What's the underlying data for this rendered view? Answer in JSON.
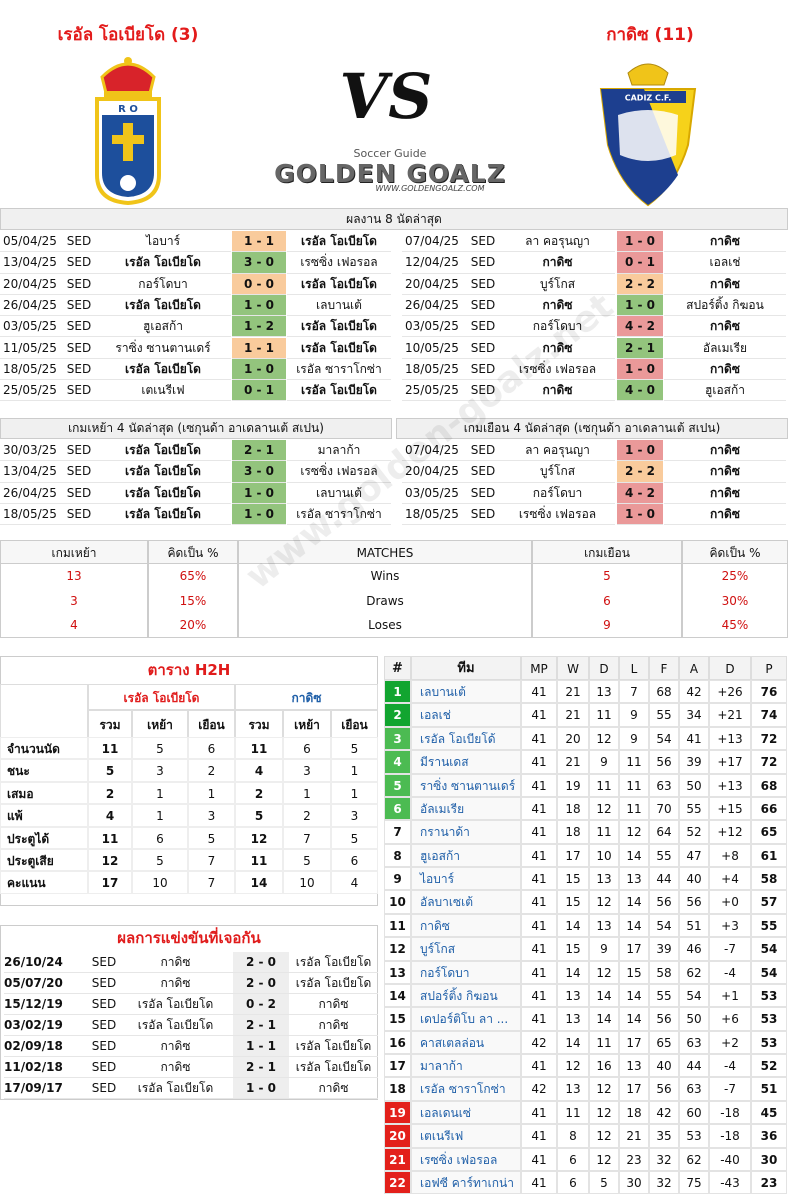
{
  "header": {
    "home_team": "เรอัล โอเบียโด (3)",
    "away_team": "กาดิซ (11)",
    "vs": "VS",
    "home_crest_text": "R O",
    "away_crest_text": "CADIZ C.F.",
    "brand_tagline": "Soccer Guide",
    "brand_name": "GOLDEN GOALZ",
    "brand_url": "WWW.GOLDENGOALZ.COM",
    "watermark": "www.golden-goalz.net"
  },
  "last8": {
    "title": "ผลงาน 8 นัดล่าสุด",
    "home": [
      [
        "05/04/25",
        "SED",
        "ไอบาร์",
        "1 - 1",
        "เรอัล โอเบียโด",
        "#f9cb9c"
      ],
      [
        "13/04/25",
        "SED",
        "เรอัล โอเบียโด",
        "3 - 0",
        "เรซซิ่ง เฟอรอล",
        "#93c47d"
      ],
      [
        "20/04/25",
        "SED",
        "กอร์โดบา",
        "0 - 0",
        "เรอัล โอเบียโด",
        "#f9cb9c"
      ],
      [
        "26/04/25",
        "SED",
        "เรอัล โอเบียโด",
        "1 - 0",
        "เลบานเต้",
        "#93c47d"
      ],
      [
        "03/05/25",
        "SED",
        "ฮูเอสก้า",
        "1 - 2",
        "เรอัล โอเบียโด",
        "#93c47d"
      ],
      [
        "11/05/25",
        "SED",
        "ราซิ่ง ซานตานเดร์",
        "1 - 1",
        "เรอัล โอเบียโด",
        "#f9cb9c"
      ],
      [
        "18/05/25",
        "SED",
        "เรอัล โอเบียโด",
        "1 - 0",
        "เรอัล ซาราโกซ่า",
        "#93c47d"
      ],
      [
        "25/05/25",
        "SED",
        "เตเนรีเฟ",
        "0 - 1",
        "เรอัล โอเบียโด",
        "#93c47d"
      ]
    ],
    "away": [
      [
        "07/04/25",
        "SED",
        "ลา คอรุนญา",
        "1 - 0",
        "กาดิซ",
        "#ea9999"
      ],
      [
        "12/04/25",
        "SED",
        "กาดิซ",
        "0 - 1",
        "เอลเช่",
        "#ea9999"
      ],
      [
        "20/04/25",
        "SED",
        "บูร์โกส",
        "2 - 2",
        "กาดิซ",
        "#f9cb9c"
      ],
      [
        "26/04/25",
        "SED",
        "กาดิซ",
        "1 - 0",
        "สปอร์ติ้ง กิฆอน",
        "#93c47d"
      ],
      [
        "03/05/25",
        "SED",
        "กอร์โดบา",
        "4 - 2",
        "กาดิซ",
        "#ea9999"
      ],
      [
        "10/05/25",
        "SED",
        "กาดิซ",
        "2 - 1",
        "อัลเมเรีย",
        "#93c47d"
      ],
      [
        "18/05/25",
        "SED",
        "เรซซิ่ง เฟอรอล",
        "1 - 0",
        "กาดิซ",
        "#ea9999"
      ],
      [
        "25/05/25",
        "SED",
        "กาดิซ",
        "4 - 0",
        "ฮูเอสก้า",
        "#93c47d"
      ]
    ]
  },
  "last4": {
    "home_title": "เกมเหย้า 4 นัดล่าสุด (เซกุนด้า อาเดลานเต้ สเปน)",
    "away_title": "เกมเยือน 4 นัดล่าสุด (เซกุนด้า อาเดลานเต้ สเปน)",
    "home": [
      [
        "30/03/25",
        "SED",
        "เรอัล โอเบียโด",
        "2 - 1",
        "มาลาก้า",
        "#93c47d"
      ],
      [
        "13/04/25",
        "SED",
        "เรอัล โอเบียโด",
        "3 - 0",
        "เรซซิ่ง เฟอรอล",
        "#93c47d"
      ],
      [
        "26/04/25",
        "SED",
        "เรอัล โอเบียโด",
        "1 - 0",
        "เลบานเต้",
        "#93c47d"
      ],
      [
        "18/05/25",
        "SED",
        "เรอัล โอเบียโด",
        "1 - 0",
        "เรอัล ซาราโกซ่า",
        "#93c47d"
      ]
    ],
    "away": [
      [
        "07/04/25",
        "SED",
        "ลา คอรุนญา",
        "1 - 0",
        "กาดิซ",
        "#ea9999"
      ],
      [
        "20/04/25",
        "SED",
        "บูร์โกส",
        "2 - 2",
        "กาดิซ",
        "#f9cb9c"
      ],
      [
        "03/05/25",
        "SED",
        "กอร์โดบา",
        "4 - 2",
        "กาดิซ",
        "#ea9999"
      ],
      [
        "18/05/25",
        "SED",
        "เรซซิ่ง เฟอรอล",
        "1 - 0",
        "กาดิซ",
        "#ea9999"
      ]
    ]
  },
  "stats": {
    "headers": [
      "เกมเหย้า",
      "คิดเป็น %",
      "MATCHES",
      "เกมเยือน",
      "คิดเป็น %"
    ],
    "rows": [
      [
        13,
        "65%",
        "Wins",
        5,
        "25%"
      ],
      [
        3,
        "15%",
        "Draws",
        6,
        "30%"
      ],
      [
        4,
        "20%",
        "Loses",
        9,
        "45%"
      ]
    ]
  },
  "h2h": {
    "title": "ตาราง H2H",
    "teams": [
      "เรอัล โอเบียโด",
      "กาดิซ"
    ],
    "columns": [
      "รวม",
      "เหย้า",
      "เยือน"
    ],
    "rows": [
      [
        "จำนวนนัด",
        11,
        5,
        6,
        11,
        6,
        5
      ],
      [
        "ชนะ",
        5,
        3,
        2,
        4,
        3,
        1
      ],
      [
        "เสมอ",
        2,
        1,
        1,
        2,
        1,
        1
      ],
      [
        "แพ้",
        4,
        1,
        3,
        5,
        2,
        3
      ],
      [
        "ประตูได้",
        11,
        6,
        5,
        12,
        7,
        5
      ],
      [
        "ประตูเสีย",
        12,
        5,
        7,
        11,
        5,
        6
      ],
      [
        "คะแนน",
        17,
        10,
        7,
        14,
        10,
        4
      ]
    ]
  },
  "meetings": {
    "title": "ผลการแข่งขันที่เจอกัน",
    "rows": [
      [
        "26/10/24",
        "SED",
        "กาดิซ",
        "2 - 0",
        "เรอัล โอเบียโด"
      ],
      [
        "05/07/20",
        "SED",
        "กาดิซ",
        "2 - 0",
        "เรอัล โอเบียโด"
      ],
      [
        "15/12/19",
        "SED",
        "เรอัล โอเบียโด",
        "0 - 2",
        "กาดิซ"
      ],
      [
        "03/02/19",
        "SED",
        "เรอัล โอเบียโด",
        "2 - 1",
        "กาดิซ"
      ],
      [
        "02/09/18",
        "SED",
        "กาดิซ",
        "1 - 1",
        "เรอัล โอเบียโด"
      ],
      [
        "11/02/18",
        "SED",
        "กาดิซ",
        "2 - 1",
        "เรอัล โอเบียโด"
      ],
      [
        "17/09/17",
        "SED",
        "เรอัล โอเบียโด",
        "1 - 0",
        "กาดิซ"
      ]
    ]
  },
  "league": {
    "headers": [
      "#",
      "ทีม",
      "MP",
      "W",
      "D",
      "L",
      "F",
      "A",
      "D",
      "P"
    ],
    "rows": [
      [
        1,
        "เลบานเต้",
        41,
        21,
        13,
        7,
        68,
        42,
        "+26",
        76
      ],
      [
        2,
        "เอลเช่",
        41,
        21,
        11,
        9,
        55,
        34,
        "+21",
        74
      ],
      [
        3,
        "เรอัล โอเบียโด้",
        41,
        20,
        12,
        9,
        54,
        41,
        "+13",
        72
      ],
      [
        4,
        "มีรานเดส",
        41,
        21,
        9,
        11,
        56,
        39,
        "+17",
        72
      ],
      [
        5,
        "ราซิ่ง ซานตานเดร์",
        41,
        19,
        11,
        11,
        63,
        50,
        "+13",
        68
      ],
      [
        6,
        "อัลเมเรีย",
        41,
        18,
        12,
        11,
        70,
        55,
        "+15",
        66
      ],
      [
        7,
        "กรานาด้า",
        41,
        18,
        11,
        12,
        64,
        52,
        "+12",
        65
      ],
      [
        8,
        "ฮูเอสก้า",
        41,
        17,
        10,
        14,
        55,
        47,
        "+8",
        61
      ],
      [
        9,
        "ไอบาร์",
        41,
        15,
        13,
        13,
        44,
        40,
        "+4",
        58
      ],
      [
        10,
        "อัลบาเซเต้",
        41,
        15,
        12,
        14,
        56,
        56,
        "+0",
        57
      ],
      [
        11,
        "กาดิซ",
        41,
        14,
        13,
        14,
        54,
        51,
        "+3",
        55
      ],
      [
        12,
        "บูร์โกส",
        41,
        15,
        9,
        17,
        39,
        46,
        "-7",
        54
      ],
      [
        13,
        "กอร์โดบา",
        41,
        14,
        12,
        15,
        58,
        62,
        "-4",
        54
      ],
      [
        14,
        "สปอร์ติ้ง กิฆอน",
        41,
        13,
        14,
        14,
        55,
        54,
        "+1",
        53
      ],
      [
        15,
        "เดปอร์ติโบ ลา ...",
        41,
        13,
        14,
        14,
        56,
        50,
        "+6",
        53
      ],
      [
        16,
        "คาสเตลล่อน",
        42,
        14,
        11,
        17,
        65,
        63,
        "+2",
        53
      ],
      [
        17,
        "มาลาก้า",
        41,
        12,
        16,
        13,
        40,
        44,
        "-4",
        52
      ],
      [
        18,
        "เรอัล ซาราโกซ่า",
        42,
        13,
        12,
        17,
        56,
        63,
        "-7",
        51
      ],
      [
        19,
        "เอลเดนเซ่",
        41,
        11,
        12,
        18,
        42,
        60,
        "-18",
        45
      ],
      [
        20,
        "เตเนรีเฟ",
        41,
        8,
        12,
        21,
        35,
        53,
        "-18",
        36
      ],
      [
        21,
        "เรซซิ่ง เฟอรอล",
        41,
        6,
        12,
        23,
        32,
        62,
        "-40",
        30
      ],
      [
        22,
        "เอฟซี คาร์ทาเกน่า",
        41,
        6,
        5,
        30,
        32,
        75,
        "-43",
        23
      ]
    ],
    "rank_colors": [
      "#12a530",
      "#12a530",
      "#4cbb52",
      "#4cbb52",
      "#4cbb52",
      "#4cbb52",
      null,
      null,
      null,
      null,
      null,
      null,
      null,
      null,
      null,
      null,
      null,
      null,
      "#e3201b",
      "#e3201b",
      "#e3201b",
      "#e3201b"
    ]
  }
}
